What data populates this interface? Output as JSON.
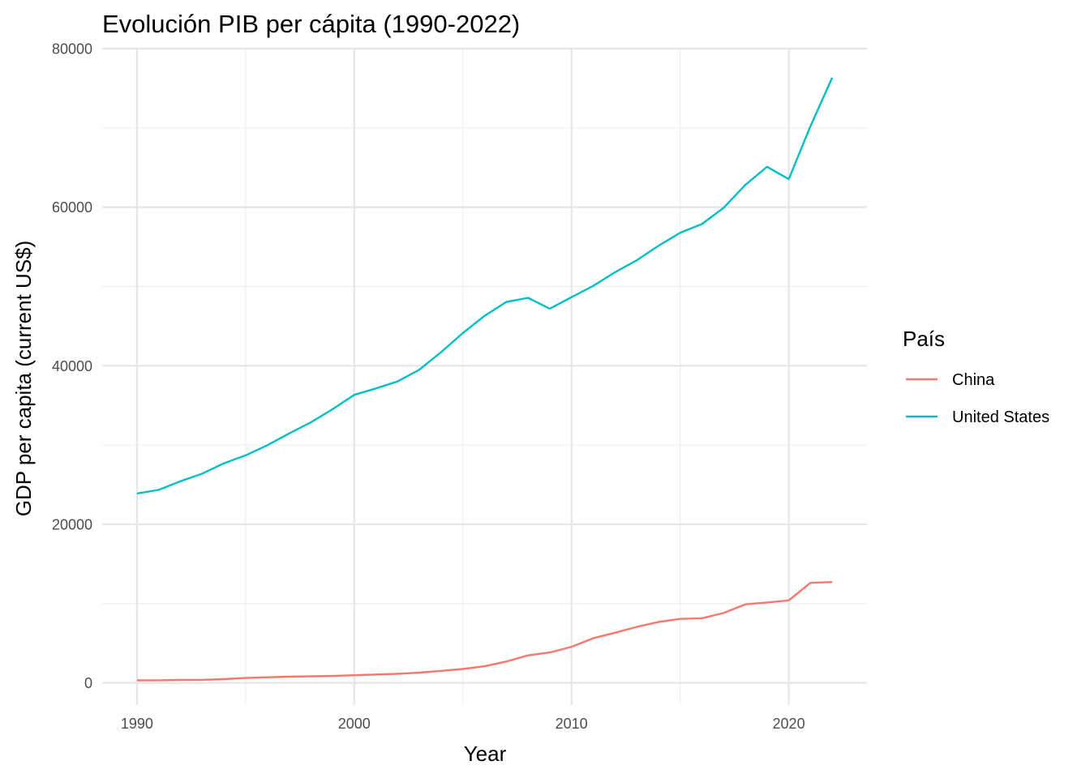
{
  "chart_data": {
    "type": "line",
    "title": "Evolución PIB per cápita (1990-2022)",
    "xlabel": "Year",
    "ylabel": "GDP per capita (current US$)",
    "xlim": [
      1988.4,
      2023.6
    ],
    "ylim": [
      -2800,
      80000
    ],
    "x_ticks": [
      1990,
      2000,
      2010,
      2020
    ],
    "y_ticks": [
      0,
      20000,
      40000,
      60000,
      80000
    ],
    "grid": true,
    "legend": {
      "title": "País",
      "position": "right"
    },
    "x": [
      1990,
      1991,
      1992,
      1993,
      1994,
      1995,
      1996,
      1997,
      1998,
      1999,
      2000,
      2001,
      2002,
      2003,
      2004,
      2005,
      2006,
      2007,
      2008,
      2009,
      2010,
      2011,
      2012,
      2013,
      2014,
      2015,
      2016,
      2017,
      2018,
      2019,
      2020,
      2021,
      2022
    ],
    "series": [
      {
        "name": "China",
        "color": "#F8766D",
        "values": [
          318,
          333,
          366,
          377,
          473,
          610,
          709,
          782,
          829,
          873,
          959,
          1053,
          1148,
          1288,
          1509,
          1753,
          2099,
          2694,
          3468,
          3832,
          4550,
          5618,
          6317,
          7051,
          7679,
          8067,
          8147,
          8817,
          9905,
          10144,
          10409,
          12618,
          12720
        ]
      },
      {
        "name": "United States",
        "color": "#00BFC4",
        "values": [
          23889,
          24342,
          25419,
          26387,
          27695,
          28691,
          29968,
          31459,
          32854,
          34515,
          36330,
          37134,
          38024,
          39496,
          41713,
          44115,
          46299,
          48050,
          48570,
          47195,
          48651,
          50066,
          51784,
          53291,
          55124,
          56763,
          57867,
          59915,
          62805,
          65095,
          63528,
          70220,
          76330
        ]
      }
    ]
  }
}
